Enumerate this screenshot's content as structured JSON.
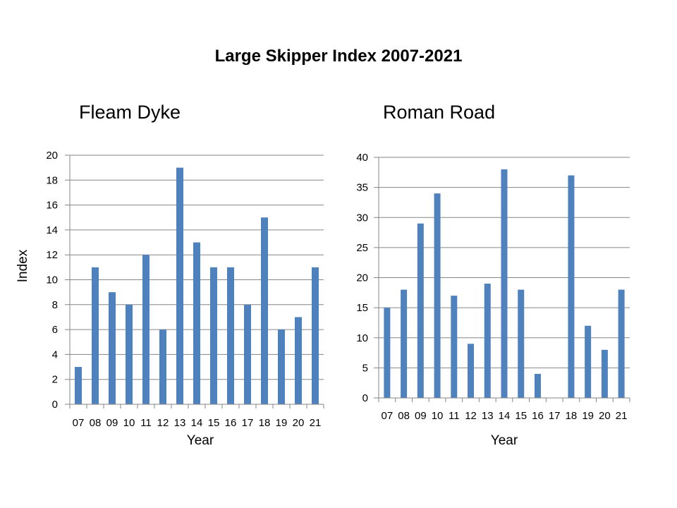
{
  "title": "Large Skipper Index 2007-2021",
  "colors": {
    "bar": "#4f81bd",
    "grid": "#868686",
    "axis": "#868686"
  },
  "chart_data": [
    {
      "type": "bar",
      "title": "Fleam Dyke",
      "xlabel": "Year",
      "ylabel": "Index",
      "ylim": [
        0,
        20
      ],
      "ytick_step": 2,
      "grid": true,
      "categories": [
        "07",
        "08",
        "09",
        "10",
        "11",
        "12",
        "13",
        "14",
        "15",
        "16",
        "17",
        "18",
        "19",
        "20",
        "21"
      ],
      "values": [
        3,
        11,
        9,
        8,
        12,
        6,
        19,
        13,
        11,
        11,
        8,
        15,
        6,
        7,
        11
      ]
    },
    {
      "type": "bar",
      "title": "Roman Road",
      "xlabel": "Year",
      "ylabel": "",
      "ylim": [
        0,
        40
      ],
      "ytick_step": 5,
      "grid": true,
      "categories": [
        "07",
        "08",
        "09",
        "10",
        "11",
        "12",
        "13",
        "14",
        "15",
        "16",
        "17",
        "18",
        "19",
        "20",
        "21"
      ],
      "values": [
        15,
        18,
        29,
        34,
        17,
        9,
        19,
        38,
        18,
        4,
        0,
        37,
        12,
        8,
        18
      ]
    }
  ]
}
